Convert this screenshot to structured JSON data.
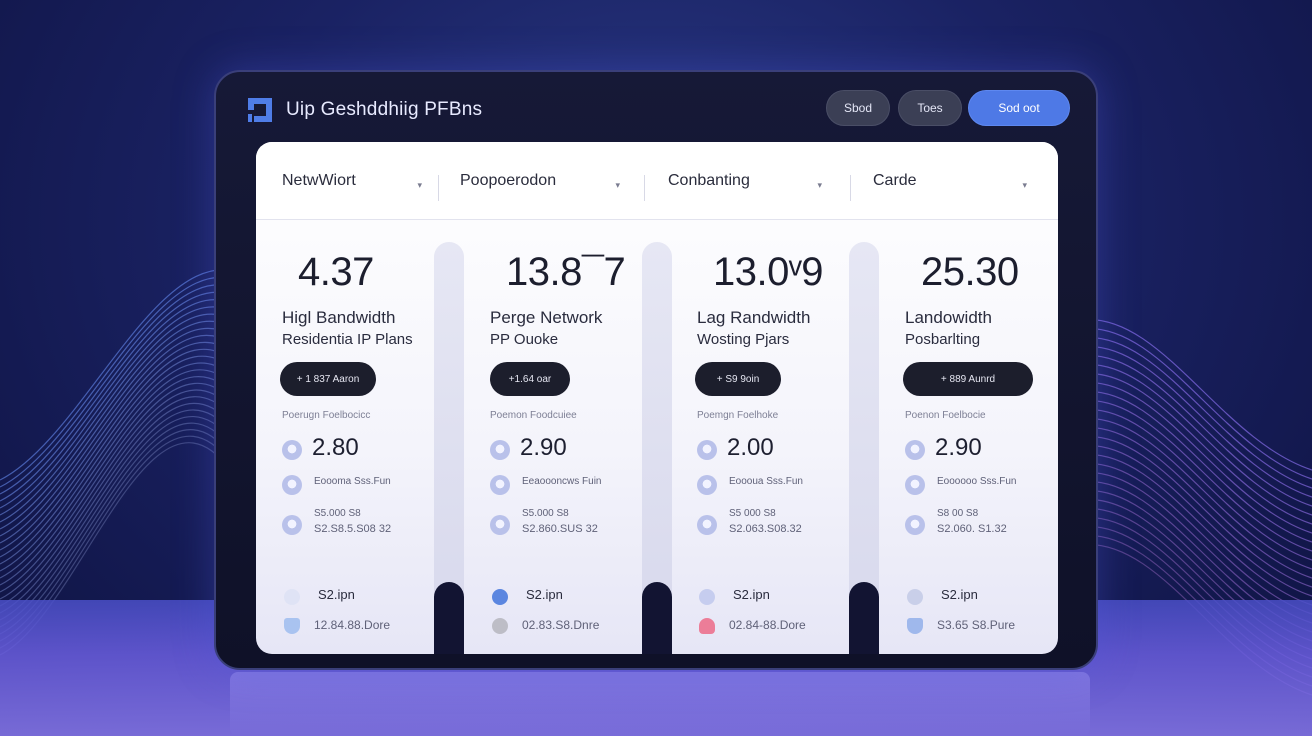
{
  "app": {
    "title": "Uip Geshddhiig PFBns",
    "buttons": [
      "Sbod",
      "Toes",
      "Sod oot"
    ]
  },
  "filters": [
    "NetwWiort",
    "Poopoerodon",
    "Conbanting",
    "Carde"
  ],
  "cards": [
    {
      "price": "4.37",
      "name_line1": "Higl Bandwidth",
      "name_line2": "Residentia IP Plans",
      "cta": "+ 1 837 Aaron",
      "features_heading": "Poerugn Foelbocicc",
      "feature_value": "2.80",
      "feature_row2": "Eoooma Sss.Fun",
      "feature_row3_line1": "S5.000 S8",
      "feature_row3_line2": "S2.S8.5.S08 32",
      "bottom_line1": "S2.ipn",
      "bottom_line2": "12.84.88.Dore"
    },
    {
      "price": "13.8¯7",
      "name_line1": "Perge Network",
      "name_line2": "PP Ouoke",
      "cta": "+1.64 oar",
      "features_heading": "Poemon Foodcuiee",
      "feature_value": "2.90",
      "feature_row2": "Eeaoooncws Fuin",
      "feature_row3_line1": "S5.000 S8",
      "feature_row3_line2": "S2.860.SUS 32",
      "bottom_line1": "S2.ipn",
      "bottom_line2": "02.83.S8.Dnre"
    },
    {
      "price": "13.0ᵛ9",
      "name_line1": "Lag Randwidth",
      "name_line2": "Wosting Pjars",
      "cta": "+ S9 9oin",
      "features_heading": "Poemgn Foelhoke",
      "feature_value": "2.00",
      "feature_row2": "Eoooua Sss.Fun",
      "feature_row3_line1": "S5 000 S8",
      "feature_row3_line2": "S2.063.S08.32",
      "bottom_line1": "S2.ipn",
      "bottom_line2": "02.84-88.Dore"
    },
    {
      "price": "25.30",
      "name_line1": "Landowidth",
      "name_line2": "Posbarlting",
      "cta": "+ 889 Aunrd",
      "features_heading": "Poenon Foelbocie",
      "feature_value": "2.90",
      "feature_row2": "Eoooooo Sss.Fun",
      "feature_row3_line1": "S8 00 S8",
      "feature_row3_line2": "S2.060. S1.32",
      "bottom_line1": "S2.ipn",
      "bottom_line2": "S3.65 S8.Pure"
    }
  ],
  "colors": {
    "accent": "#4e79e6",
    "background": "#1a2263",
    "card_dark_button": "#1c1e2c",
    "bottom_icons": [
      [
        "#dfe3f5",
        "#a9c3f0"
      ],
      [
        "#5b86e0",
        "#bdbdc6"
      ],
      [
        "#c6cdef",
        "#ec7d98"
      ],
      [
        "#c9cfe9",
        "#9fb8ec"
      ]
    ]
  },
  "icons": {
    "logo": "square-bracket-logo-icon",
    "filter_chevron": "chevron-down-icon",
    "feature_bullet": "circle-bullet-icon"
  }
}
